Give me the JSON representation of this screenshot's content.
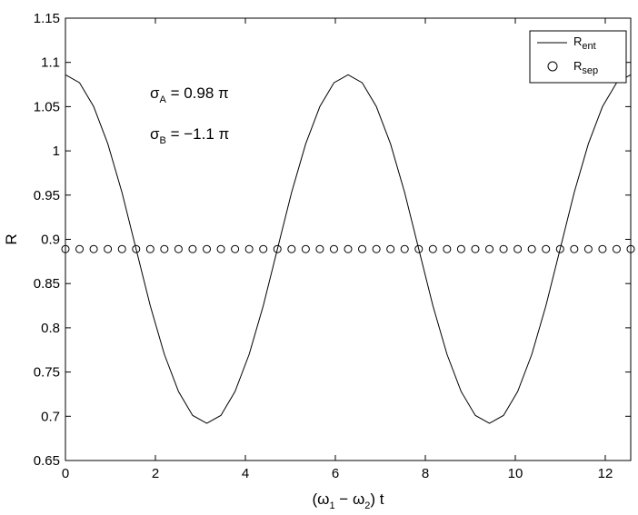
{
  "chart_data": {
    "type": "line",
    "xlabel": {
      "pre": "(ω",
      "sub1": "1",
      "mid": " − ω",
      "sub2": "2",
      "post": ") t"
    },
    "ylabel": "R",
    "xlim": [
      0,
      12.566
    ],
    "ylim": [
      0.65,
      1.15
    ],
    "xticks": [
      0,
      2,
      4,
      6,
      8,
      10,
      12
    ],
    "xtick_labels": [
      "0",
      "2",
      "4",
      "6",
      "8",
      "10",
      "12"
    ],
    "yticks": [
      0.65,
      0.7,
      0.75,
      0.8,
      0.85,
      0.9,
      0.95,
      1,
      1.05,
      1.1,
      1.15
    ],
    "ytick_labels": [
      "0.65",
      "0.7",
      "0.75",
      "0.8",
      "0.85",
      "0.9",
      "0.95",
      "1",
      "1.05",
      "1.1",
      "1.15"
    ],
    "grid": false,
    "legend_position": "top-right",
    "annotations": [
      {
        "sym": "σ",
        "sub": "A",
        "rest": " = 0.98 π"
      },
      {
        "sym": "σ",
        "sub": "B",
        "rest": " = −1.1 π"
      }
    ],
    "series": [
      {
        "name": "R",
        "name_sub": "ent",
        "style": "line",
        "color": "#000000",
        "x": [
          0,
          0.314,
          0.628,
          0.942,
          1.257,
          1.571,
          1.885,
          2.199,
          2.513,
          2.827,
          3.142,
          3.456,
          3.77,
          4.084,
          4.398,
          4.712,
          5.027,
          5.341,
          5.655,
          5.969,
          6.283,
          6.597,
          6.912,
          7.226,
          7.54,
          7.854,
          8.168,
          8.482,
          8.796,
          9.111,
          9.425,
          9.739,
          10.053,
          10.367,
          10.681,
          10.996,
          11.31,
          11.624,
          11.938,
          12.252,
          12.566
        ],
        "y": [
          1.086,
          1.077,
          1.05,
          1.008,
          0.953,
          0.889,
          0.825,
          0.77,
          0.728,
          0.701,
          0.692,
          0.701,
          0.728,
          0.77,
          0.825,
          0.889,
          0.953,
          1.008,
          1.05,
          1.077,
          1.086,
          1.077,
          1.05,
          1.008,
          0.953,
          0.889,
          0.825,
          0.77,
          0.728,
          0.701,
          0.692,
          0.701,
          0.728,
          0.77,
          0.825,
          0.889,
          0.953,
          1.008,
          1.05,
          1.077,
          1.086
        ]
      },
      {
        "name": "R",
        "name_sub": "sep",
        "style": "markers",
        "marker": "circle",
        "color": "#000000",
        "x": [
          0,
          0.314,
          0.628,
          0.942,
          1.257,
          1.571,
          1.885,
          2.199,
          2.513,
          2.827,
          3.142,
          3.456,
          3.77,
          4.084,
          4.398,
          4.712,
          5.027,
          5.341,
          5.655,
          5.969,
          6.283,
          6.597,
          6.912,
          7.226,
          7.54,
          7.854,
          8.168,
          8.482,
          8.796,
          9.111,
          9.425,
          9.739,
          10.053,
          10.367,
          10.681,
          10.996,
          11.31,
          11.624,
          11.938,
          12.252,
          12.566
        ],
        "y": [
          0.889,
          0.889,
          0.889,
          0.889,
          0.889,
          0.889,
          0.889,
          0.889,
          0.889,
          0.889,
          0.889,
          0.889,
          0.889,
          0.889,
          0.889,
          0.889,
          0.889,
          0.889,
          0.889,
          0.889,
          0.889,
          0.889,
          0.889,
          0.889,
          0.889,
          0.889,
          0.889,
          0.889,
          0.889,
          0.889,
          0.889,
          0.889,
          0.889,
          0.889,
          0.889,
          0.889,
          0.889,
          0.889,
          0.889,
          0.889,
          0.889
        ]
      }
    ]
  }
}
